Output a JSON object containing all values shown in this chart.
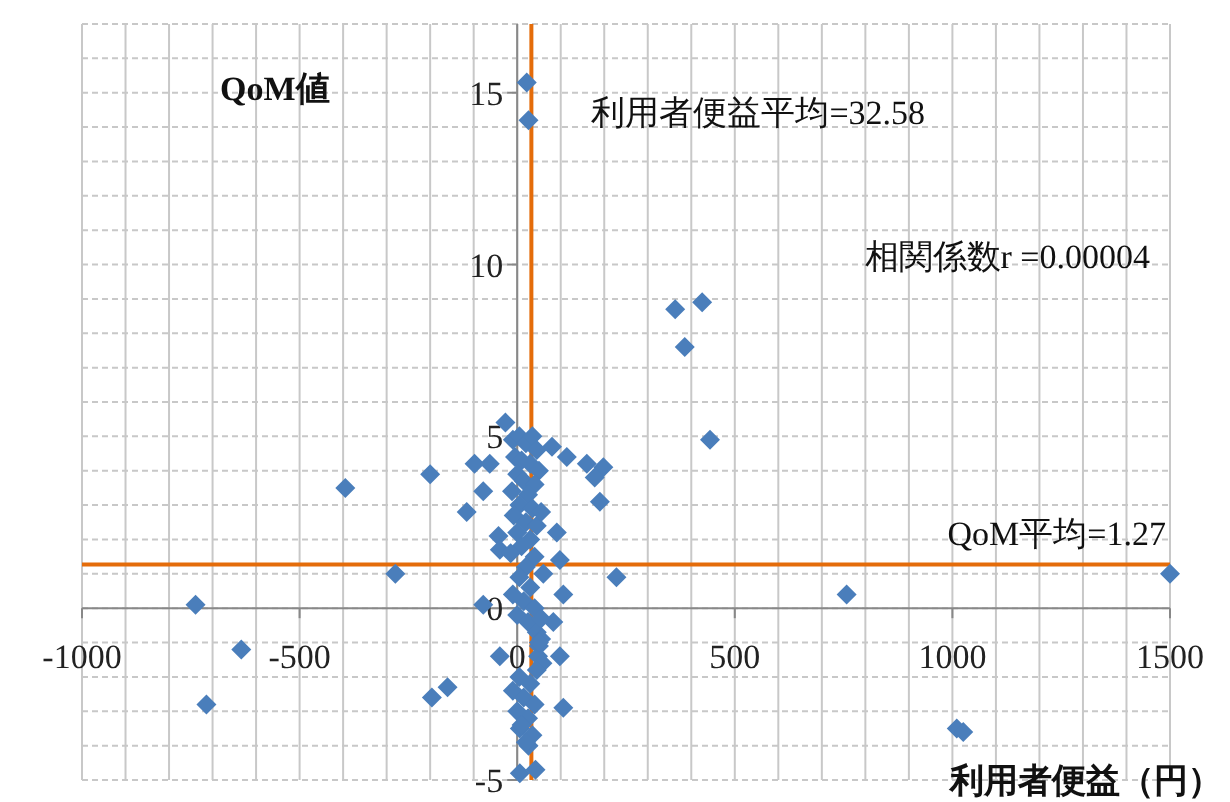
{
  "chart_data": {
    "type": "scatter",
    "xlabel": "利用者便益（円）",
    "ylabel": "QoM値",
    "annotations": [
      "相関係数r =0.00004"
    ],
    "ref_lines": [
      {
        "axis": "x",
        "value": 32.58,
        "label": "利用者便益平均=32.58",
        "color": "#e46c0a"
      },
      {
        "axis": "y",
        "value": 1.27,
        "label": "QoM平均=1.27",
        "color": "#e46c0a"
      }
    ],
    "xlim": [
      -1000,
      1500
    ],
    "ylim": [
      -5,
      17
    ],
    "xticks": [
      -1000,
      {
        "value": -900,
        "label": null
      },
      {
        "value": -800,
        "label": null
      },
      {
        "value": -700,
        "label": null
      },
      {
        "value": -600,
        "label": null
      },
      -500,
      {
        "value": -400,
        "label": null
      },
      {
        "value": -300,
        "label": null
      },
      {
        "value": -200,
        "label": null
      },
      {
        "value": -100,
        "label": null
      },
      0,
      {
        "value": 100,
        "label": null
      },
      {
        "value": 200,
        "label": null
      },
      {
        "value": 300,
        "label": null
      },
      {
        "value": 400,
        "label": null
      },
      500,
      {
        "value": 600,
        "label": null
      },
      {
        "value": 700,
        "label": null
      },
      {
        "value": 800,
        "label": null
      },
      {
        "value": 900,
        "label": null
      },
      1000,
      {
        "value": 1100,
        "label": null
      },
      {
        "value": 1200,
        "label": null
      },
      {
        "value": 1300,
        "label": null
      },
      {
        "value": 1400,
        "label": null
      },
      1500
    ],
    "yticks": [
      -5,
      {
        "value": -4,
        "label": null
      },
      {
        "value": -3,
        "label": null
      },
      {
        "value": -2,
        "label": null
      },
      {
        "value": -1,
        "label": null
      },
      0,
      {
        "value": 1,
        "label": null
      },
      {
        "value": 2,
        "label": null
      },
      {
        "value": 3,
        "label": null
      },
      {
        "value": 4,
        "label": null
      },
      5,
      {
        "value": 6,
        "label": null
      },
      {
        "value": 7,
        "label": null
      },
      {
        "value": 8,
        "label": null
      },
      {
        "value": 9,
        "label": null
      },
      10,
      {
        "value": 11,
        "label": null
      },
      {
        "value": 12,
        "label": null
      },
      {
        "value": 13,
        "label": null
      },
      {
        "value": 14,
        "label": null
      },
      15,
      {
        "value": 16,
        "label": null
      },
      {
        "value": 17,
        "label": null
      }
    ],
    "grid": true,
    "marker": "diamond",
    "series": [
      {
        "color": "#4a7ebb",
        "x": [
          -739,
          -634,
          -714,
          -395,
          -280,
          -200,
          -196,
          -160,
          -116,
          -78,
          -98,
          -63,
          -27,
          -78,
          -40,
          -43,
          -40,
          6,
          42,
          26,
          6,
          106,
          98,
          83,
          106,
          98,
          91,
          114,
          80,
          160,
          198,
          178,
          190,
          228,
          1500,
          757,
          1010,
          1025,
          443,
          363,
          425,
          385,
          22,
          26,
          -10,
          5,
          20,
          35,
          45,
          -5,
          10,
          30,
          50,
          0,
          15,
          40,
          -12,
          25,
          5,
          35,
          -8,
          20,
          45,
          0,
          30,
          10,
          -15,
          40,
          20,
          5,
          30,
          -10,
          15,
          40,
          0,
          25,
          45,
          55,
          50,
          48,
          58,
          45,
          5,
          30,
          -10,
          15,
          40,
          0,
          25,
          10,
          35,
          20,
          50,
          55,
          55,
          60
        ],
        "values": [
          0.1,
          -1.2,
          -2.8,
          3.5,
          1.0,
          3.9,
          -2.6,
          -2.3,
          2.8,
          3.4,
          4.2,
          4.2,
          5.4,
          0.1,
          -1.4,
          2.1,
          1.7,
          -4.8,
          -4.7,
          -4.0,
          -3.5,
          -2.9,
          -1.4,
          -0.4,
          0.4,
          1.4,
          2.2,
          4.4,
          4.7,
          4.2,
          4.1,
          3.8,
          3.1,
          0.9,
          1.0,
          0.4,
          -3.5,
          -3.6,
          4.9,
          8.7,
          8.9,
          7.6,
          15.3,
          14.2,
          4.9,
          5.0,
          4.8,
          5.0,
          4.6,
          4.4,
          4.3,
          4.2,
          4.0,
          3.9,
          3.7,
          3.6,
          3.4,
          3.3,
          3.0,
          2.9,
          2.7,
          2.5,
          2.4,
          2.2,
          2.0,
          1.8,
          1.6,
          1.5,
          1.2,
          0.9,
          0.6,
          0.4,
          0.2,
          0.0,
          -0.2,
          -0.4,
          -0.7,
          -0.9,
          -1.1,
          -1.4,
          -1.6,
          -1.8,
          -2.0,
          -2.2,
          -2.4,
          -2.6,
          -2.8,
          -3.0,
          -3.2,
          -3.4,
          -3.7,
          -3.9,
          -1.0,
          2.8,
          -0.3,
          1.0
        ]
      }
    ]
  }
}
